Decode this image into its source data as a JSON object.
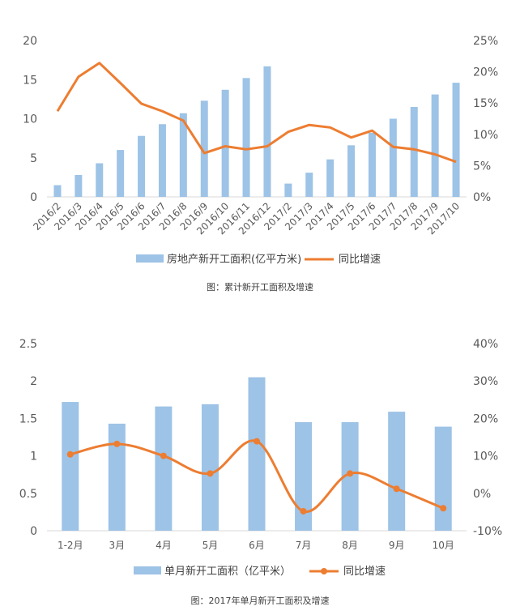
{
  "chart_data": [
    {
      "type": "bar+line",
      "title": "",
      "caption": "图：累计新开工面积及增速",
      "categories": [
        "2016/2",
        "2016/3",
        "2016/4",
        "2016/5",
        "2016/6",
        "2016/7",
        "2016/8",
        "2016/9",
        "2016/10",
        "2016/11",
        "2016/12",
        "2017/2",
        "2017/3",
        "2017/4",
        "2017/5",
        "2017/6",
        "2017/7",
        "2017/8",
        "2017/9",
        "2017/10"
      ],
      "series": [
        {
          "name": "房地产新开工面积(亿平方米)",
          "kind": "bar",
          "axis": "left",
          "color": "#9DC3E6",
          "values": [
            1.5,
            2.8,
            4.3,
            6.0,
            7.8,
            9.3,
            10.7,
            12.3,
            13.7,
            15.2,
            16.7,
            1.7,
            3.1,
            4.8,
            6.6,
            8.2,
            10.0,
            11.5,
            13.1,
            14.6
          ]
        },
        {
          "name": "同比增速",
          "kind": "line",
          "axis": "right",
          "color": "#ED7D31",
          "values": [
            13.7,
            19.2,
            21.4,
            18.2,
            14.9,
            13.7,
            12.2,
            7.0,
            8.1,
            7.6,
            8.1,
            10.4,
            11.5,
            11.1,
            9.5,
            10.6,
            8.0,
            7.6,
            6.8,
            5.6
          ]
        }
      ],
      "left_axis": {
        "min": 0,
        "max": 20,
        "ticks": [
          "0",
          "5",
          "10",
          "15",
          "20"
        ]
      },
      "right_axis": {
        "min": 0,
        "max": 25,
        "ticks": [
          "0%",
          "5%",
          "10%",
          "15%",
          "20%",
          "25%"
        ]
      },
      "legend": [
        "房地产新开工面积(亿平方米)",
        "同比增速"
      ],
      "legend_position": "bottom"
    },
    {
      "type": "bar+line",
      "title": "",
      "caption": "图：2017年单月新开工面积及增速",
      "categories": [
        "1-2月",
        "3月",
        "4月",
        "5月",
        "6月",
        "7月",
        "8月",
        "9月",
        "10月"
      ],
      "series": [
        {
          "name": "单月新开工面积（亿平米）",
          "kind": "bar",
          "axis": "left",
          "color": "#9DC3E6",
          "values": [
            1.72,
            1.43,
            1.66,
            1.69,
            2.05,
            1.45,
            1.45,
            1.59,
            1.39
          ]
        },
        {
          "name": "同比增速",
          "kind": "line-marker",
          "axis": "right",
          "color": "#ED7D31",
          "values": [
            10.4,
            13.2,
            10.0,
            5.3,
            13.9,
            -4.8,
            5.3,
            1.2,
            -4.0
          ]
        }
      ],
      "left_axis": {
        "min": 0,
        "max": 2.5,
        "ticks": [
          "0",
          "0.5",
          "1",
          "1.5",
          "2",
          "2.5"
        ]
      },
      "right_axis": {
        "min": -10,
        "max": 40,
        "ticks": [
          "-10%",
          "0%",
          "10%",
          "20%",
          "30%",
          "40%"
        ]
      },
      "legend": [
        "单月新开工面积（亿平米）",
        "同比增速"
      ],
      "legend_position": "bottom"
    }
  ]
}
